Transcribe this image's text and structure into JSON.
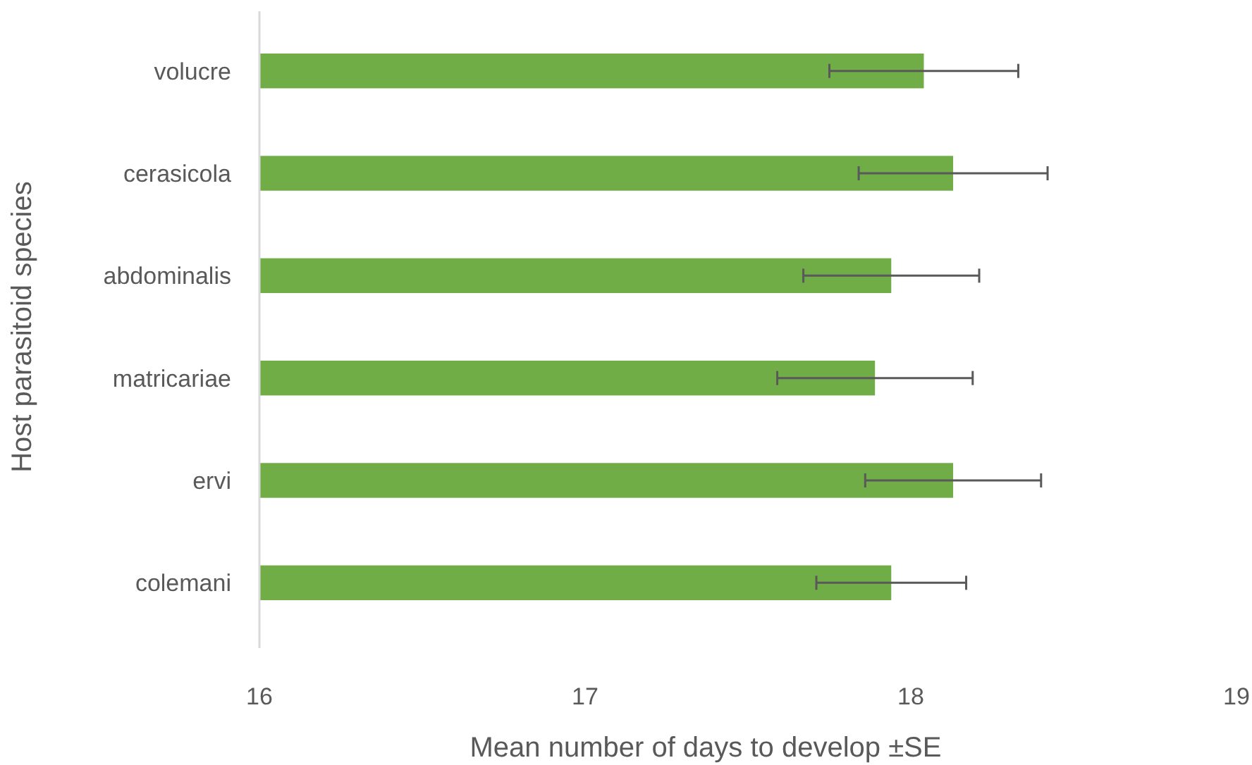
{
  "chart_data": {
    "type": "bar",
    "orientation": "horizontal",
    "xlabel": "Mean number of days to develop ±SE",
    "ylabel": "Host parasitoid species",
    "categories": [
      "volucre",
      "cerasicola",
      "abdominalis",
      "matricariae",
      "ervi",
      "colemani"
    ],
    "values": [
      18.04,
      18.13,
      17.94,
      17.89,
      18.13,
      17.94
    ],
    "errors": [
      0.29,
      0.29,
      0.27,
      0.3,
      0.27,
      0.23
    ],
    "color": "#70ad47",
    "xlim": [
      16,
      19
    ],
    "xticks": [
      16,
      17,
      18,
      19
    ],
    "grid": false
  }
}
